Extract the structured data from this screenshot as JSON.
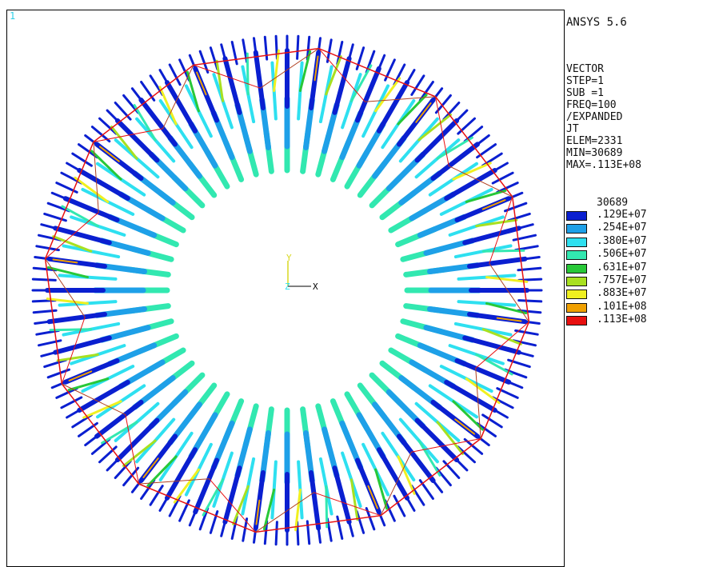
{
  "window_number": "1",
  "product": "ANSYS 5.6",
  "params": [
    "VECTOR",
    "STEP=1",
    "SUB =1",
    "FREQ=100",
    "/EXPANDED",
    "JT",
    "ELEM=2331",
    "MIN=30689",
    "MAX=.113E+08"
  ],
  "legend": {
    "min_label": "30689",
    "entries": [
      {
        "label": ".129E+07",
        "color": "#0a1fd0"
      },
      {
        "label": ".254E+07",
        "color": "#1ea0e8"
      },
      {
        "label": ".380E+07",
        "color": "#2ee0f0"
      },
      {
        "label": ".506E+07",
        "color": "#32e8b0"
      },
      {
        "label": ".631E+07",
        "color": "#28c838"
      },
      {
        "label": ".757E+07",
        "color": "#a8e020"
      },
      {
        "label": ".883E+07",
        "color": "#f0f020"
      },
      {
        "label": ".101E+08",
        "color": "#f0a000"
      },
      {
        "label": ".113E+08",
        "color": "#e81010"
      }
    ]
  },
  "triad": {
    "y_label": "Y",
    "z_label": "Z",
    "x_label": "X"
  },
  "colors": {
    "vector_blue": "#0a1fd0",
    "vector_lightblue": "#1ea0e8",
    "vector_cyan": "#2ee0f0",
    "vector_teal": "#32e8b0",
    "vector_green": "#28c838",
    "vector_lime": "#a8e020",
    "vector_yellow": "#f0f020",
    "vector_orange": "#f0a000",
    "vector_red": "#e81010",
    "triad_color": "#d8d820",
    "frame": "#000000"
  },
  "plot": {
    "slot_count": 48,
    "coil_segments": 12
  }
}
